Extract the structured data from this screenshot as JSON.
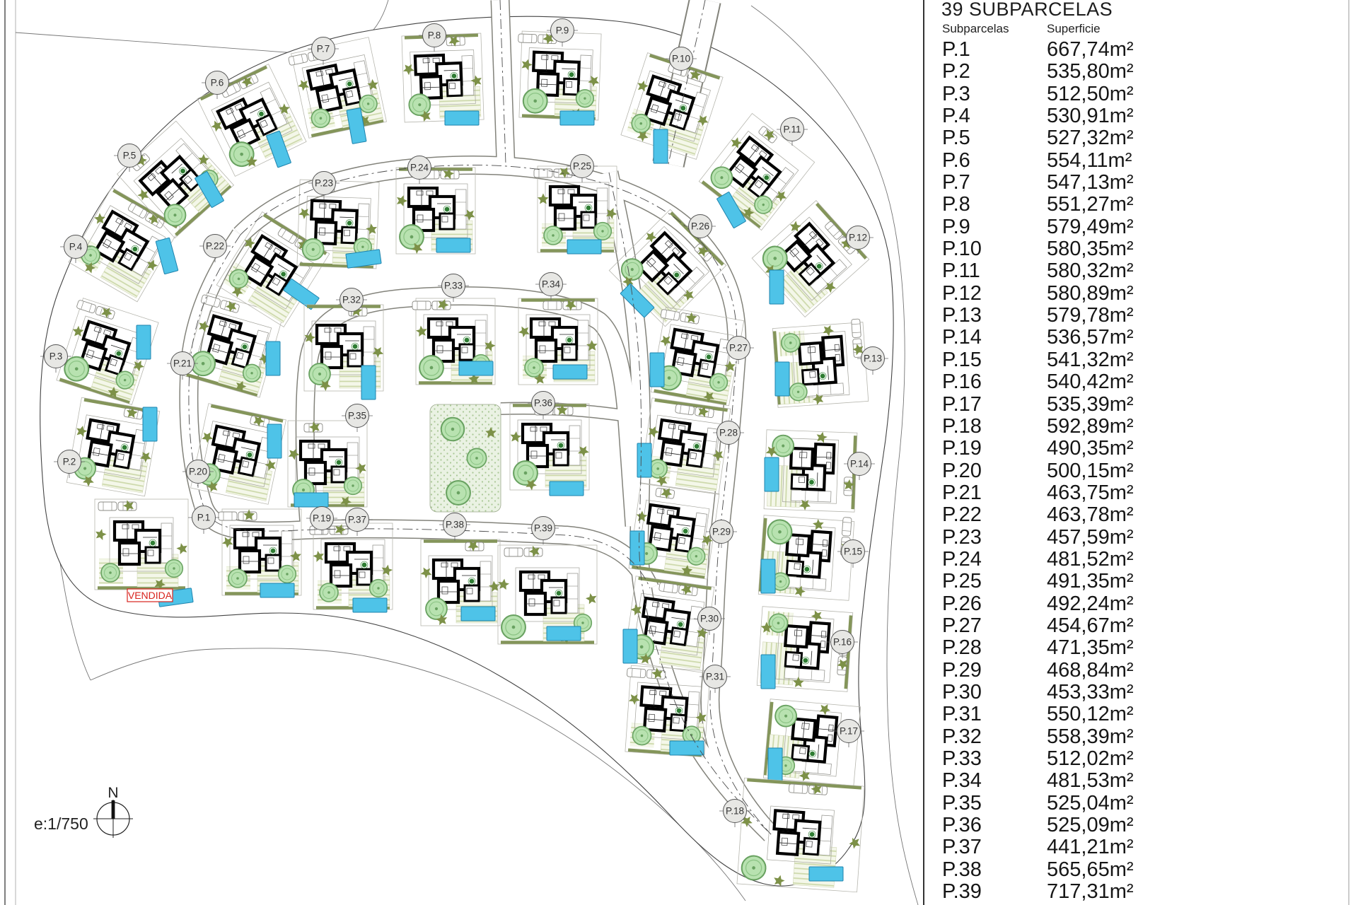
{
  "panel": {
    "title": "39 SUBPARCELAS",
    "col_subparcelas": "Subparcelas",
    "col_superficie": "Superficie"
  },
  "table": {
    "rows": [
      {
        "id": "P.1",
        "area": "667,74m²"
      },
      {
        "id": "P.2",
        "area": "535,80m²"
      },
      {
        "id": "P.3",
        "area": "512,50m²"
      },
      {
        "id": "P.4",
        "area": "530,91m²"
      },
      {
        "id": "P.5",
        "area": "527,32m²"
      },
      {
        "id": "P.6",
        "area": "554,11m²"
      },
      {
        "id": "P.7",
        "area": "547,13m²"
      },
      {
        "id": "P.8",
        "area": "551,27m²"
      },
      {
        "id": "P.9",
        "area": "579,49m²"
      },
      {
        "id": "P.10",
        "area": "580,35m²"
      },
      {
        "id": "P.11",
        "area": "580,32m²"
      },
      {
        "id": "P.12",
        "area": "580,89m²"
      },
      {
        "id": "P.13",
        "area": "579,78m²"
      },
      {
        "id": "P.14",
        "area": "536,57m²"
      },
      {
        "id": "P.15",
        "area": "541,32m²"
      },
      {
        "id": "P.16",
        "area": "540,42m²"
      },
      {
        "id": "P.17",
        "area": "535,39m²"
      },
      {
        "id": "P.18",
        "area": "592,89m²"
      },
      {
        "id": "P.19",
        "area": "490,35m²"
      },
      {
        "id": "P.20",
        "area": "500,15m²"
      },
      {
        "id": "P.21",
        "area": "463,75m²"
      },
      {
        "id": "P.22",
        "area": "463,78m²"
      },
      {
        "id": "P.23",
        "area": "457,59m²"
      },
      {
        "id": "P.24",
        "area": "481,52m²"
      },
      {
        "id": "P.25",
        "area": "491,35m²"
      },
      {
        "id": "P.26",
        "area": "492,24m²"
      },
      {
        "id": "P.27",
        "area": "454,67m²"
      },
      {
        "id": "P.28",
        "area": "471,35m²"
      },
      {
        "id": "P.29",
        "area": "468,84m²"
      },
      {
        "id": "P.30",
        "area": "453,33m²"
      },
      {
        "id": "P.31",
        "area": "550,12m²"
      },
      {
        "id": "P.32",
        "area": "558,39m²"
      },
      {
        "id": "P.33",
        "area": "512,02m²"
      },
      {
        "id": "P.34",
        "area": "481,53m²"
      },
      {
        "id": "P.35",
        "area": "525,04m²"
      },
      {
        "id": "P.36",
        "area": "525,09m²"
      },
      {
        "id": "P.37",
        "area": "441,21m²"
      },
      {
        "id": "P.38",
        "area": "565,65m²"
      },
      {
        "id": "P.39",
        "area": "717,31m²"
      }
    ]
  },
  "map": {
    "sold_label": "VENDIDA",
    "scale_label": "e:1/750",
    "north_label": "N",
    "colors": {
      "pool": "#4ec3e8",
      "pool_edge": "#1f83ad",
      "tree": "#b8e2b0",
      "tree_edge": "#69a261",
      "shrub": "#7d9148",
      "hedge": "#84955a",
      "sold": "#d8231d",
      "road_edge": "#83837b",
      "plot_line": "#b6b6ae",
      "label_fill": "#e7e7e4",
      "label_edge": "#555555"
    },
    "plots": [
      {
        "id": "P.1",
        "label": [
          288,
          732
        ],
        "villa": [
          200,
          770,
          0
        ],
        "pool": [
          248,
          845,
          -8
        ],
        "size": [
          132,
          128
        ]
      },
      {
        "id": "P.2",
        "label": [
          98,
          653
        ],
        "villa": [
          160,
          632,
          10
        ],
        "pool": [
          212,
          600,
          90
        ]
      },
      {
        "id": "P.3",
        "label": [
          79,
          504
        ],
        "villa": [
          152,
          497,
          18
        ],
        "pool": [
          203,
          484,
          90
        ]
      },
      {
        "id": "P.4",
        "label": [
          107,
          349
        ],
        "villa": [
          176,
          346,
          30
        ],
        "pool": [
          236,
          362,
          75
        ]
      },
      {
        "id": "P.5",
        "label": [
          183,
          220
        ],
        "villa": [
          248,
          254,
          -42
        ],
        "pool": [
          296,
          268,
          60
        ]
      },
      {
        "id": "P.6",
        "label": [
          307,
          117
        ],
        "villa": [
          356,
          170,
          -26
        ],
        "pool": [
          394,
          211,
          70
        ]
      },
      {
        "id": "P.7",
        "label": [
          457,
          69
        ],
        "villa": [
          479,
          124,
          -12
        ],
        "pool": [
          504,
          178,
          80
        ]
      },
      {
        "id": "P.8",
        "label": [
          614,
          50
        ],
        "villa": [
          626,
          110,
          -2
        ],
        "pool": [
          653,
          167,
          0
        ]
      },
      {
        "id": "P.9",
        "label": [
          795,
          43
        ],
        "villa": [
          792,
          107,
          2
        ],
        "pool": [
          816,
          167,
          0
        ]
      },
      {
        "id": "P.10",
        "label": [
          963,
          83
        ],
        "villa": [
          950,
          150,
          18
        ],
        "pool": [
          934,
          207,
          90
        ]
      },
      {
        "id": "P.11",
        "label": [
          1120,
          183
        ],
        "villa": [
          1070,
          243,
          38
        ],
        "pool": [
          1034,
          297,
          60
        ]
      },
      {
        "id": "P.12",
        "label": [
          1213,
          336
        ],
        "villa": [
          1146,
          366,
          48
        ],
        "pool": [
          1098,
          406,
          90
        ]
      },
      {
        "id": "P.13",
        "label": [
          1234,
          507
        ],
        "villa": [
          1160,
          516,
          86
        ],
        "pool": [
          1106,
          536,
          90
        ],
        "size": [
          112,
          128
        ]
      },
      {
        "id": "P.14",
        "label": [
          1215,
          656
        ],
        "villa": [
          1146,
          666,
          92
        ],
        "pool": [
          1091,
          671,
          90
        ],
        "size": [
          112,
          128
        ]
      },
      {
        "id": "P.15",
        "label": [
          1206,
          780
        ],
        "villa": [
          1140,
          789,
          94
        ],
        "pool": [
          1086,
          815,
          90
        ],
        "size": [
          112,
          128
        ]
      },
      {
        "id": "P.16",
        "label": [
          1191,
          908
        ],
        "villa": [
          1138,
          918,
          94
        ],
        "pool": [
          1086,
          950,
          90
        ],
        "size": [
          112,
          128
        ]
      },
      {
        "id": "P.17",
        "label": [
          1200,
          1034
        ],
        "villa": [
          1148,
          1050,
          95
        ],
        "pool": [
          1096,
          1082,
          90
        ],
        "size": [
          112,
          128
        ]
      },
      {
        "id": "P.18",
        "label": [
          1039,
          1147
        ],
        "villa": [
          1132,
          1181,
          4
        ],
        "pool": [
          1168,
          1236,
          0
        ],
        "size": [
          170,
          150
        ]
      },
      {
        "id": "P.19",
        "label": [
          455,
          733
        ],
        "villa": [
          370,
          781,
          0
        ],
        "pool": [
          392,
          835,
          0
        ]
      },
      {
        "id": "P.20",
        "label": [
          280,
          667
        ],
        "villa": [
          337,
          642,
          12
        ],
        "pool": [
          388,
          624,
          90
        ]
      },
      {
        "id": "P.21",
        "label": [
          258,
          514
        ],
        "villa": [
          330,
          488,
          16
        ],
        "pool": [
          386,
          507,
          90
        ]
      },
      {
        "id": "P.22",
        "label": [
          304,
          348
        ],
        "villa": [
          386,
          381,
          32
        ],
        "pool": [
          426,
          416,
          35
        ]
      },
      {
        "id": "P.23",
        "label": [
          458,
          259
        ],
        "villa": [
          478,
          317,
          2
        ],
        "pool": [
          514,
          366,
          -8
        ]
      },
      {
        "id": "P.24",
        "label": [
          593,
          237
        ],
        "villa": [
          616,
          298,
          0
        ],
        "pool": [
          641,
          347,
          0
        ]
      },
      {
        "id": "P.25",
        "label": [
          823,
          235
        ],
        "villa": [
          816,
          296,
          0
        ],
        "pool": [
          826,
          349,
          0
        ]
      },
      {
        "id": "P.26",
        "label": [
          990,
          320
        ],
        "villa": [
          944,
          379,
          45
        ],
        "pool": [
          901,
          425,
          45
        ]
      },
      {
        "id": "P.27",
        "label": [
          1044,
          492
        ],
        "villa": [
          986,
          504,
          10
        ],
        "pool": [
          929,
          523,
          90
        ]
      },
      {
        "id": "P.28",
        "label": [
          1030,
          612
        ],
        "villa": [
          969,
          631,
          8
        ],
        "pool": [
          911,
          651,
          90
        ]
      },
      {
        "id": "P.29",
        "label": [
          1020,
          752
        ],
        "villa": [
          953,
          751,
          8
        ],
        "pool": [
          901,
          775,
          90
        ]
      },
      {
        "id": "P.30",
        "label": [
          1003,
          875
        ],
        "villa": [
          946,
          883,
          8
        ],
        "pool": [
          891,
          914,
          90
        ]
      },
      {
        "id": "P.31",
        "label": [
          1011,
          957
        ],
        "villa": [
          944,
          1006,
          4
        ],
        "pool": [
          971,
          1058,
          0
        ]
      },
      {
        "id": "P.32",
        "label": [
          497,
          424
        ],
        "villa": [
          486,
          492,
          0
        ],
        "pool": [
          521,
          541,
          90
        ]
      },
      {
        "id": "P.33",
        "label": [
          641,
          404
        ],
        "villa": [
          644,
          483,
          0
        ],
        "pool": [
          673,
          521,
          0
        ]
      },
      {
        "id": "P.34",
        "label": [
          779,
          402
        ],
        "villa": [
          789,
          483,
          0
        ],
        "pool": [
          806,
          526,
          0
        ]
      },
      {
        "id": "P.35",
        "label": [
          505,
          588
        ],
        "villa": [
          463,
          656,
          0
        ],
        "pool": [
          440,
          707,
          0
        ]
      },
      {
        "id": "P.36",
        "label": [
          768,
          570
        ],
        "villa": [
          777,
          632,
          0
        ],
        "pool": [
          801,
          691,
          0
        ]
      },
      {
        "id": "P.37",
        "label": [
          505,
          735
        ],
        "villa": [
          499,
          801,
          0
        ],
        "pool": [
          523,
          856,
          0
        ]
      },
      {
        "id": "P.38",
        "label": [
          643,
          742
        ],
        "villa": [
          651,
          824,
          0
        ],
        "pool": [
          676,
          868,
          0
        ]
      },
      {
        "id": "P.39",
        "label": [
          768,
          747
        ],
        "villa": [
          774,
          841,
          0
        ],
        "pool": [
          797,
          896,
          0
        ],
        "size": [
          140,
          140
        ]
      }
    ]
  }
}
